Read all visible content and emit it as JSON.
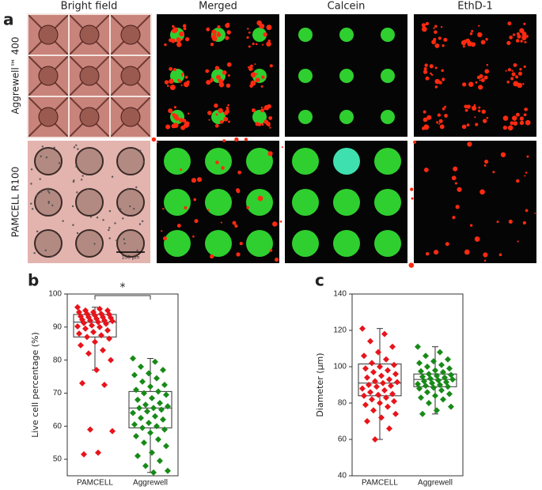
{
  "panel_labels": [
    "a",
    "b",
    "c"
  ],
  "panel_a": {
    "columns": [
      {
        "label": "Bright field",
        "color": "#222222"
      },
      {
        "label": "Merged",
        "color": "#222222"
      },
      {
        "label": "Calcein",
        "color": "#22a822"
      },
      {
        "label": "EthD-1",
        "color": "#e02020"
      }
    ],
    "rows": [
      "Aggrewell™ 400",
      "PAMCELL R100"
    ],
    "scale_bar": "100 μm"
  },
  "chart_data": [
    {
      "type": "box",
      "y_label": "Live cell percentage (%)",
      "categories": [
        "PAMCELL",
        "Aggrewell"
      ],
      "ylim": [
        45,
        100
      ],
      "yticks": [
        50,
        60,
        70,
        80,
        90,
        100
      ],
      "annotation": "*",
      "groups": [
        {
          "color": "#e8141b",
          "box": {
            "whisker_low": 77,
            "q1": 87,
            "median": 91.5,
            "q3": 93.8,
            "whisker_high": 96
          },
          "points": [
            96,
            95.5,
            95,
            95,
            94.5,
            94.5,
            94,
            94,
            93.8,
            93.5,
            93.2,
            93,
            93,
            92.8,
            92.5,
            92.2,
            92,
            92,
            91.8,
            91.5,
            91.2,
            91,
            90.5,
            90.2,
            90,
            89.5,
            89,
            88.5,
            88,
            87.5,
            87,
            86.5,
            85.5,
            84.5,
            83,
            82,
            80,
            77,
            73,
            72.5,
            59,
            58.5,
            52,
            51.5
          ]
        },
        {
          "color": "#178a17",
          "box": {
            "whisker_low": 46,
            "q1": 59.5,
            "median": 65.5,
            "q3": 70.5,
            "whisker_high": 80.5
          },
          "points": [
            80.5,
            79.5,
            78,
            77,
            76,
            75.5,
            74.5,
            73.5,
            72.5,
            72,
            71,
            70.5,
            70,
            69.5,
            68.5,
            68,
            67,
            66.5,
            66,
            65.5,
            65.5,
            65,
            64.5,
            64,
            63,
            62.5,
            62,
            61,
            60.5,
            60,
            59.5,
            59,
            58,
            57,
            56,
            55,
            54,
            52,
            51,
            49.5,
            48,
            46.5,
            46
          ]
        }
      ]
    },
    {
      "type": "box",
      "y_label": "Diameter (μm)",
      "categories": [
        "PAMCELL",
        "Aggrewell"
      ],
      "ylim": [
        40,
        140
      ],
      "yticks": [
        40,
        60,
        80,
        100,
        120,
        140
      ],
      "groups": [
        {
          "color": "#e8141b",
          "box": {
            "whisker_low": 60,
            "q1": 84,
            "median": 91,
            "q3": 101.5,
            "whisker_high": 121
          },
          "points": [
            121,
            118,
            114,
            111,
            108,
            106,
            104,
            102,
            101,
            100,
            99,
            98,
            97,
            96,
            95,
            94,
            93,
            92,
            91.5,
            91,
            90,
            89.5,
            89,
            88,
            87,
            86,
            85,
            84.5,
            84,
            83,
            82,
            81,
            80,
            79,
            78,
            76,
            74,
            72,
            70,
            66,
            60
          ]
        },
        {
          "color": "#178a17",
          "box": {
            "whisker_low": 74,
            "q1": 89,
            "median": 93,
            "q3": 96,
            "whisker_high": 111
          },
          "points": [
            111,
            108,
            106,
            104,
            103,
            102,
            101,
            100,
            99,
            98,
            97.5,
            97,
            96,
            95.5,
            95,
            94.5,
            94,
            93.5,
            93,
            92.5,
            92,
            91.5,
            91,
            90.5,
            90,
            89.5,
            89,
            88.5,
            88,
            87,
            86,
            85,
            84,
            83,
            82,
            80,
            78,
            76,
            74
          ]
        }
      ]
    }
  ]
}
